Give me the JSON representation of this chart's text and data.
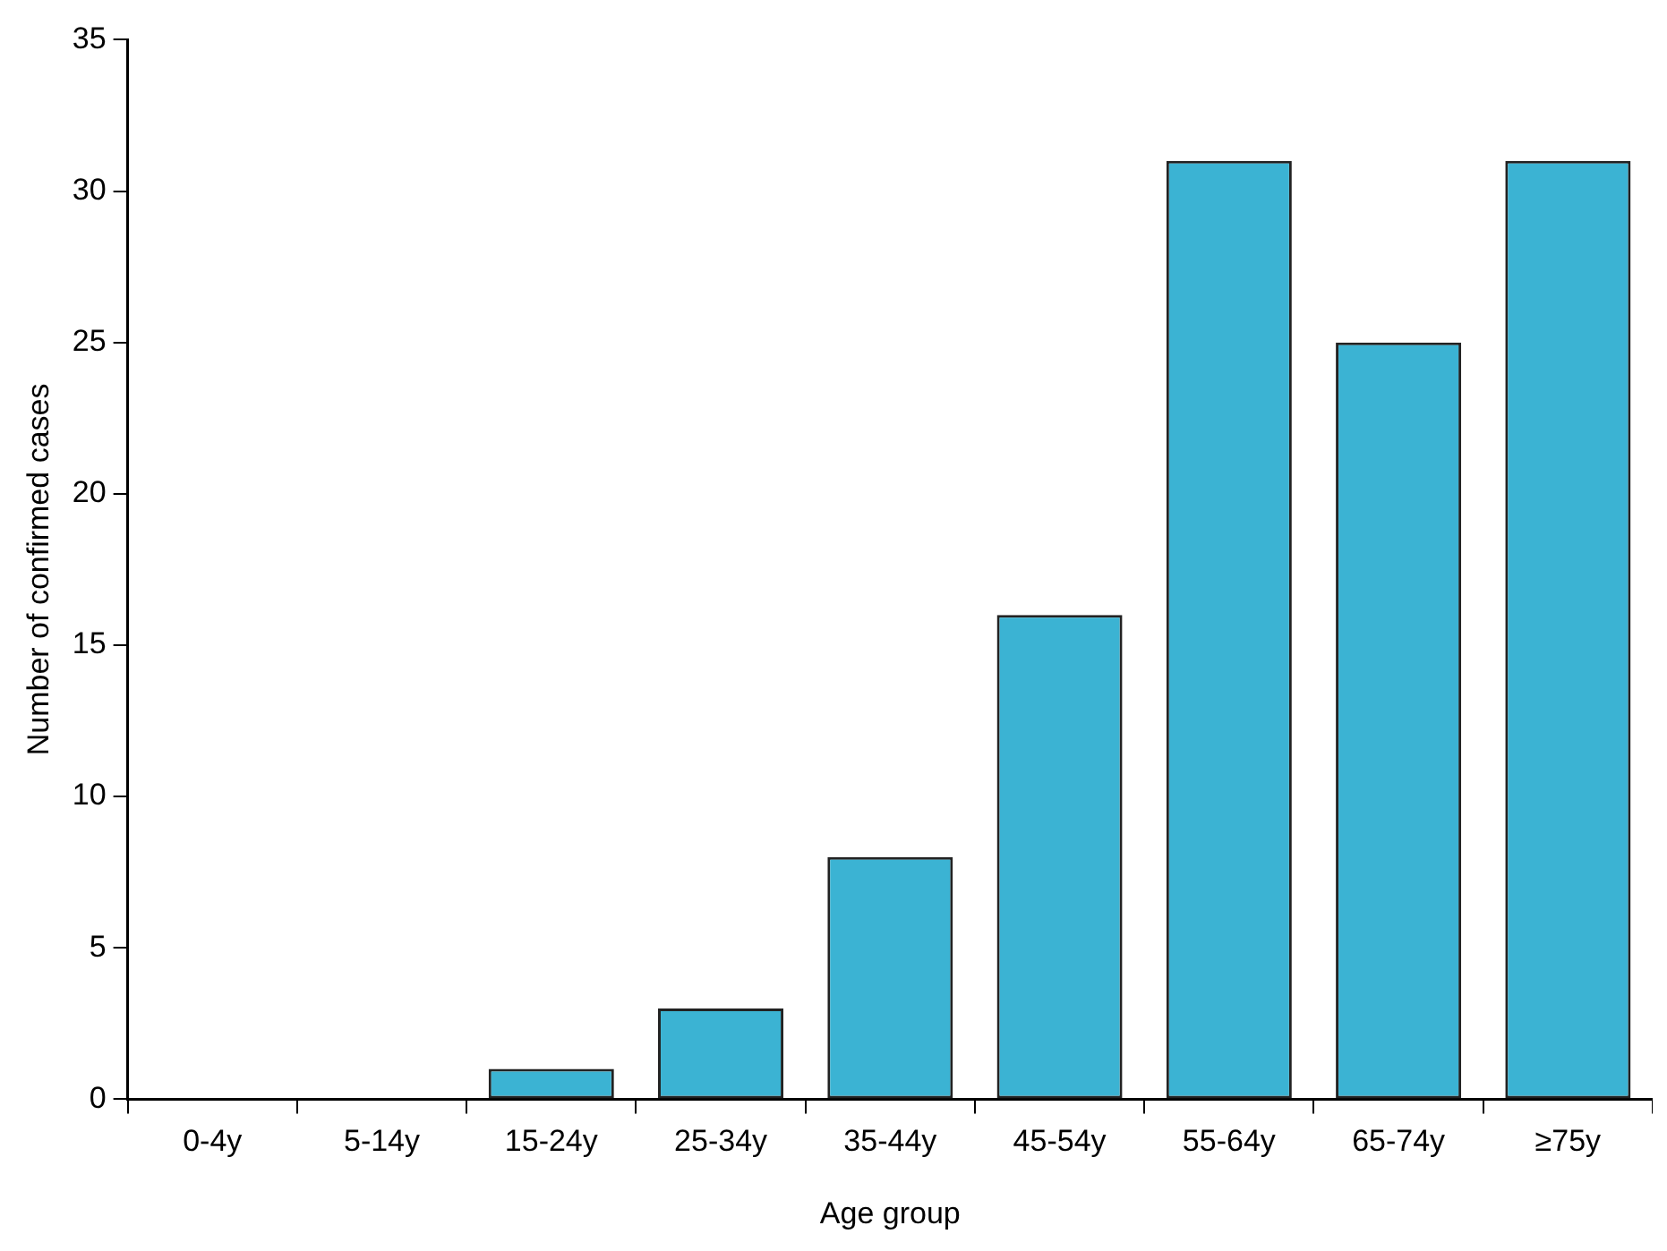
{
  "chart_data": {
    "type": "bar",
    "xlabel": "Age group",
    "ylabel": "Number of confirmed cases",
    "categories": [
      "0-4y",
      "5-14y",
      "15-24y",
      "25-34y",
      "35-44y",
      "45-54y",
      "55-64y",
      "65-74y",
      "≥75y"
    ],
    "values": [
      0,
      0,
      1,
      3,
      8,
      16,
      31,
      25,
      31
    ],
    "color": "#3bb3d3",
    "ylim": [
      0,
      35
    ],
    "yticks": [
      0,
      5,
      10,
      15,
      20,
      25,
      30,
      35
    ],
    "grid": false,
    "legend": false
  }
}
